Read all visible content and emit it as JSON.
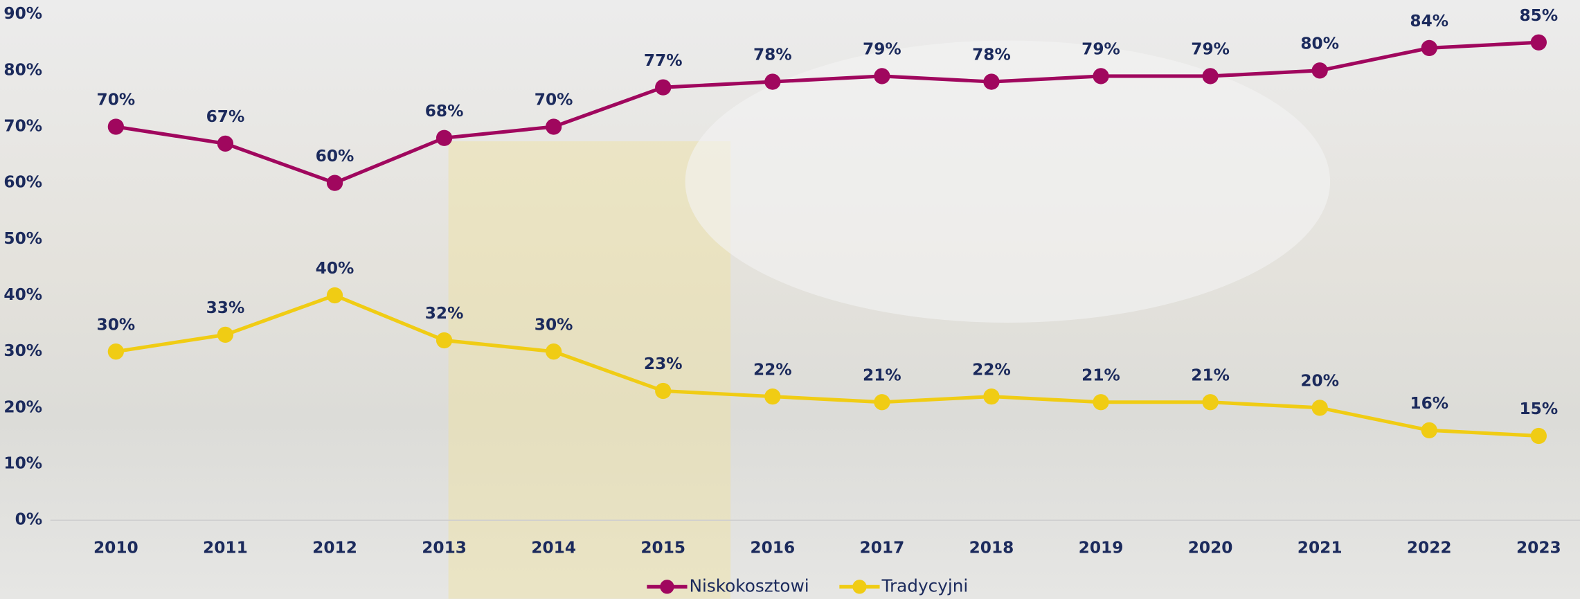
{
  "chart_data": {
    "type": "line",
    "categories": [
      "2010",
      "2011",
      "2012",
      "2013",
      "2014",
      "2015",
      "2016",
      "2017",
      "2018",
      "2019",
      "2020",
      "2021",
      "2022",
      "2023"
    ],
    "series": [
      {
        "name": "Niskokosztowi",
        "color": "#a0075e",
        "values": [
          70,
          67,
          60,
          68,
          70,
          77,
          78,
          79,
          78,
          79,
          79,
          80,
          84,
          85
        ],
        "value_labels": [
          "70%",
          "67%",
          "60%",
          "68%",
          "70%",
          "77%",
          "78%",
          "79%",
          "78%",
          "79%",
          "79%",
          "80%",
          "84%",
          "85%"
        ]
      },
      {
        "name": "Tradycyjni",
        "color": "#f0cc14",
        "values": [
          30,
          33,
          40,
          32,
          30,
          23,
          22,
          21,
          22,
          21,
          21,
          20,
          16,
          15
        ],
        "value_labels": [
          "30%",
          "33%",
          "40%",
          "32%",
          "30%",
          "23%",
          "22%",
          "21%",
          "22%",
          "21%",
          "21%",
          "20%",
          "16%",
          "15%"
        ]
      }
    ],
    "ylim": [
      0,
      90
    ],
    "yticks": [
      {
        "value": 0,
        "label": "0%"
      },
      {
        "value": 10,
        "label": "10%"
      },
      {
        "value": 20,
        "label": "20%"
      },
      {
        "value": 30,
        "label": "30%"
      },
      {
        "value": 40,
        "label": "40%"
      },
      {
        "value": 50,
        "label": "50%"
      },
      {
        "value": 60,
        "label": "60%"
      },
      {
        "value": 70,
        "label": "70%"
      },
      {
        "value": 80,
        "label": "80%"
      },
      {
        "value": 90,
        "label": "90%"
      }
    ],
    "grid": false,
    "legend": "bottom"
  }
}
